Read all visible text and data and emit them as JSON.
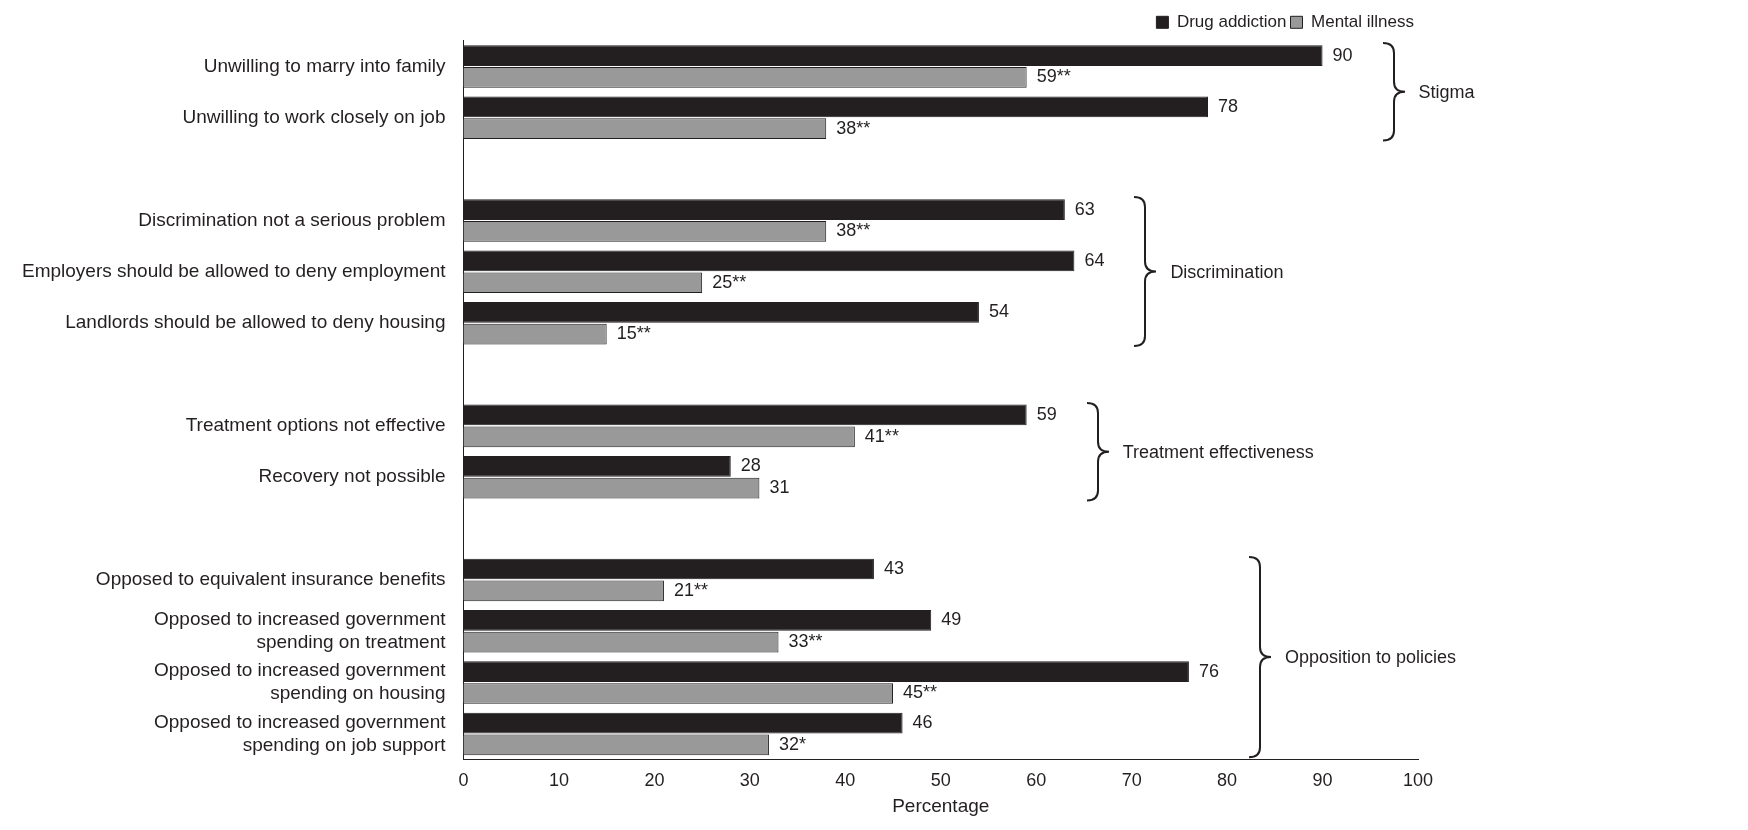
{
  "chart_data": {
    "type": "bar",
    "orientation": "horizontal",
    "categories": [
      "Unwilling to marry into family",
      "Unwilling to work closely on job",
      null,
      "Discrimination not a serious problem",
      "Employers should be allowed to deny employment",
      "Landlords should be allowed to deny housing",
      null,
      "Treatment options not effective",
      "Recovery not possible",
      null,
      "Opposed to equivalent insurance benefits",
      "Opposed to increased government\nspending on treatment",
      "Opposed to increased government\nspending on housing",
      "Opposed to increased government\nspending on job support"
    ],
    "series": [
      {
        "name": "Drug addiction",
        "color": "#231f20",
        "values": [
          90,
          78,
          null,
          63,
          64,
          54,
          null,
          59,
          28,
          null,
          43,
          49,
          76,
          46
        ],
        "value_labels": [
          "90",
          "78",
          null,
          "63",
          "64",
          "54",
          null,
          "59",
          "28",
          null,
          "43",
          "49",
          "76",
          "46"
        ]
      },
      {
        "name": "Mental illness",
        "color": "#999999",
        "values": [
          59,
          38,
          null,
          38,
          25,
          15,
          null,
          41,
          31,
          null,
          21,
          33,
          45,
          32
        ],
        "value_labels": [
          "59**",
          "38**",
          null,
          "38**",
          "25**",
          "15**",
          null,
          "41**",
          "31",
          null,
          "21**",
          "33**",
          "45**",
          "32*"
        ]
      }
    ],
    "xlim": [
      0,
      100
    ],
    "xticks": [
      0,
      10,
      20,
      30,
      40,
      50,
      60,
      70,
      80,
      90,
      100
    ],
    "xlabel": "Percentage",
    "annotations": [
      "Stigma",
      "Discrimination",
      "Treatment effectiveness",
      "Opposition to policies"
    ],
    "legend": "top right",
    "grid": false
  }
}
